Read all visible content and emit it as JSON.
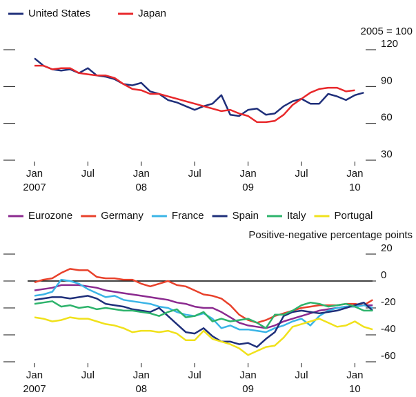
{
  "chart_data": [
    {
      "type": "line",
      "unit_note": "2005 = 100",
      "categories": [
        "Jan 2007",
        null,
        null,
        null,
        null,
        null,
        "Jul",
        null,
        null,
        null,
        null,
        null,
        "Jan 08",
        null,
        null,
        null,
        null,
        null,
        "Jul",
        null,
        null,
        null,
        null,
        null,
        "Jan 09",
        null,
        null,
        null,
        null,
        null,
        "Jul",
        null,
        null,
        null,
        null,
        null,
        "Jan 10",
        null
      ],
      "series": [
        {
          "name": "United States",
          "color": "#1f2f7a",
          "values": [
            113,
            107,
            104,
            103,
            104,
            101,
            105,
            99,
            98,
            96,
            92,
            91,
            93,
            86,
            84,
            79,
            77,
            74,
            71,
            74,
            76,
            83,
            67,
            66,
            71,
            72,
            67,
            68,
            74,
            78,
            80,
            76,
            76,
            84,
            82,
            79,
            83,
            85
          ]
        },
        {
          "name": "Japan",
          "color": "#e8282b",
          "values": [
            107,
            107,
            104,
            105,
            105,
            101,
            100,
            99,
            99,
            97,
            92,
            88,
            87,
            84,
            84,
            82,
            80,
            78,
            76,
            74,
            72,
            70,
            71,
            68,
            66,
            61,
            61,
            62,
            67,
            75,
            80,
            85,
            88,
            89,
            89,
            86,
            87,
            null
          ]
        }
      ],
      "ylim": [
        30,
        120
      ],
      "yticks": [
        30,
        60,
        90,
        120
      ]
    },
    {
      "type": "line",
      "unit_note": "Positive-negative percentage points",
      "categories": [
        "Jan 2007",
        null,
        null,
        null,
        null,
        null,
        "Jul",
        null,
        null,
        null,
        null,
        null,
        "Jan 08",
        null,
        null,
        null,
        null,
        null,
        "Jul",
        null,
        null,
        null,
        null,
        null,
        "Jan 09",
        null,
        null,
        null,
        null,
        null,
        "Jul",
        null,
        null,
        null,
        null,
        null,
        "Jan 10",
        null,
        null
      ],
      "series": [
        {
          "name": "Eurozone",
          "color": "#8b2a8f",
          "values": [
            -7,
            -6,
            -5,
            -3,
            -3,
            -3,
            -4,
            -5,
            -7,
            -8,
            -9,
            -10,
            -11,
            -12,
            -13,
            -14,
            -16,
            -17,
            -19,
            -20,
            -20,
            -23,
            -27,
            -31,
            -33,
            -34,
            -35,
            -33,
            -30,
            -28,
            -26,
            -24,
            -22,
            -21,
            -20,
            -19,
            -19,
            -18,
            -18
          ]
        },
        {
          "name": "Germany",
          "color": "#e8412b",
          "values": [
            -1,
            1,
            2,
            6,
            9,
            8,
            8,
            3,
            2,
            2,
            1,
            1,
            -2,
            -4,
            -2,
            0,
            -3,
            -4,
            -7,
            -10,
            -11,
            -13,
            -18,
            -25,
            -29,
            -31,
            -29,
            -26,
            -24,
            -22,
            -20,
            -19,
            -18,
            -18,
            -18,
            -17,
            -17,
            -18,
            -14
          ]
        },
        {
          "name": "France",
          "color": "#3ab4e6",
          "values": [
            -11,
            -10,
            -8,
            1,
            0,
            -2,
            -6,
            -9,
            -12,
            -11,
            -14,
            -15,
            -16,
            -17,
            -19,
            -20,
            -23,
            -25,
            -26,
            -24,
            -28,
            -35,
            -33,
            -36,
            -36,
            -37,
            -38,
            -35,
            -33,
            -30,
            -28,
            -33,
            -26,
            -22,
            -20,
            -19,
            -19,
            -18,
            -20
          ]
        },
        {
          "name": "Spain",
          "color": "#1f2f7a",
          "values": [
            -14,
            -13,
            -12,
            -12,
            -13,
            -12,
            -11,
            -13,
            -17,
            -18,
            -19,
            -21,
            -22,
            -23,
            -20,
            -26,
            -32,
            -38,
            -39,
            -35,
            -41,
            -45,
            -45,
            -47,
            -46,
            -49,
            -43,
            -38,
            -26,
            -23,
            -22,
            -23,
            -24,
            -23,
            -22,
            -20,
            -18,
            -16,
            -22
          ]
        },
        {
          "name": "Italy",
          "color": "#2db36b",
          "values": [
            -17,
            -16,
            -15,
            -19,
            -18,
            -20,
            -19,
            -21,
            -20,
            -21,
            -22,
            -22,
            -23,
            -24,
            -26,
            -23,
            -21,
            -27,
            -26,
            -23,
            -30,
            -28,
            -30,
            -29,
            -28,
            -31,
            -35,
            -25,
            -25,
            -22,
            -18,
            -16,
            -17,
            -19,
            -18,
            -17,
            -19,
            -22,
            -22
          ]
        },
        {
          "name": "Portugal",
          "color": "#f0e11b",
          "values": [
            -27,
            -28,
            -30,
            -29,
            -27,
            -28,
            -28,
            -30,
            -32,
            -33,
            -35,
            -38,
            -37,
            -37,
            -38,
            -37,
            -39,
            -44,
            -44,
            -37,
            -43,
            -45,
            -47,
            -50,
            -55,
            -52,
            -49,
            -48,
            -42,
            -34,
            -32,
            -30,
            -28,
            -31,
            -34,
            -33,
            -30,
            -34,
            -36
          ]
        }
      ],
      "ylim": [
        -60,
        20
      ],
      "yticks": [
        -60,
        -40,
        -20,
        0,
        20
      ]
    }
  ]
}
